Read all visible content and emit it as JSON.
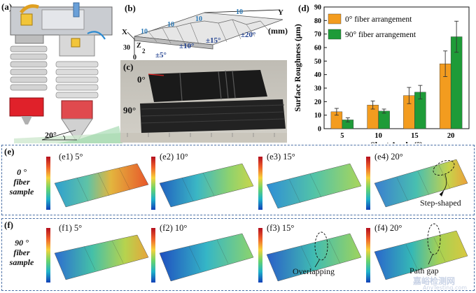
{
  "labels": {
    "a": "(a)",
    "b": "(b)",
    "c": "(c)",
    "d": "(d)",
    "e": "(e)",
    "f": "(f)"
  },
  "panel_a": {
    "angle": "20°"
  },
  "panel_b": {
    "axis_x": "X",
    "axis_y": "Y",
    "axis_z": "Z",
    "unit": "(mm)",
    "dims": [
      "10",
      "10",
      "10",
      "10",
      "30",
      "2",
      "0"
    ],
    "angles": [
      "±5°",
      "±10°",
      "±15°",
      "±20°"
    ]
  },
  "panel_c": {
    "label_0": "0°",
    "label_90": "90°"
  },
  "row_e": {
    "title": "0 ° fiber sample",
    "line1": "0 °",
    "line2": "fiber",
    "line3": "sample",
    "subs": [
      "(e1) 5°",
      "(e2) 10°",
      "(e3) 15°",
      "(e4) 20°"
    ],
    "annotation": "Step-shaped"
  },
  "row_f": {
    "title": "90 ° fiber sample",
    "line1": "90 °",
    "line2": "fiber",
    "line3": "sample",
    "subs": [
      "(f1) 5°",
      "(f2) 10°",
      "(f3) 15°",
      "(f4) 20°"
    ],
    "annotations": [
      "Overlapping",
      "Path gap"
    ]
  },
  "watermark": {
    "cn": "嘉峪检测网",
    "en": "AnyTesting.com"
  },
  "colors": {
    "orange": "#f39c1f",
    "green": "#1e9b38",
    "accent_blue": "#2a78b5"
  },
  "chart_data": {
    "type": "bar",
    "categories": [
      "5",
      "10",
      "15",
      "20"
    ],
    "series": [
      {
        "name": "0° fiber arrangement",
        "values": [
          12.5,
          17.5,
          24.5,
          48.0
        ],
        "errors": [
          2.5,
          3.0,
          6.0,
          9.5
        ],
        "color": "#f39c1f"
      },
      {
        "name": "90° fiber arrangement",
        "values": [
          6.5,
          13.0,
          27.0,
          68.0
        ],
        "errors": [
          1.5,
          1.5,
          5.0,
          11.5
        ],
        "color": "#1e9b38"
      }
    ],
    "xlabel": "Slant Angle (°)",
    "ylabel": "Surface Roughness (μm)",
    "ylim": [
      0,
      90
    ],
    "yticks": [
      "0",
      "10",
      "20",
      "30",
      "40",
      "50",
      "60",
      "70",
      "80",
      "90"
    ],
    "legend": "top-left"
  }
}
